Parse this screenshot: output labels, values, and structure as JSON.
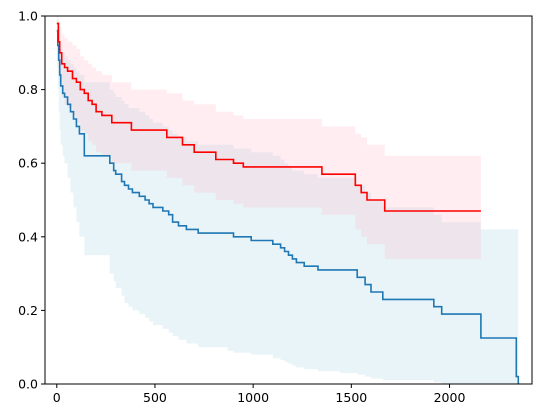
{
  "chart_data": {
    "type": "line",
    "title": "",
    "xlabel": "",
    "ylabel": "",
    "xlim": [
      -60,
      2420
    ],
    "ylim": [
      0,
      1
    ],
    "xticks": [
      0,
      500,
      1000,
      1500,
      2000
    ],
    "yticks": [
      0.0,
      0.2,
      0.4,
      0.6,
      0.8,
      1.0
    ],
    "xtick_labels": [
      "0",
      "500",
      "1000",
      "1500",
      "2000"
    ],
    "ytick_labels": [
      "0.0",
      "0.2",
      "0.4",
      "0.6",
      "0.8",
      "1.0"
    ],
    "grid": false,
    "legend": "none",
    "series": [
      {
        "color": "#1f77b4",
        "band_color": "#add8e6",
        "x": [
          0,
          5,
          10,
          15,
          20,
          30,
          40,
          55,
          70,
          85,
          100,
          115,
          140,
          270,
          290,
          300,
          330,
          345,
          365,
          385,
          420,
          450,
          470,
          490,
          540,
          570,
          590,
          620,
          660,
          720,
          870,
          900,
          990,
          1100,
          1140,
          1160,
          1180,
          1200,
          1220,
          1260,
          1330,
          1440,
          1530,
          1570,
          1600,
          1660,
          1750,
          1920,
          1960,
          2160,
          2340,
          2350
        ],
        "y": [
          0.96,
          0.92,
          0.88,
          0.84,
          0.81,
          0.79,
          0.78,
          0.76,
          0.74,
          0.72,
          0.7,
          0.68,
          0.62,
          0.6,
          0.58,
          0.57,
          0.55,
          0.54,
          0.53,
          0.52,
          0.51,
          0.5,
          0.49,
          0.48,
          0.47,
          0.46,
          0.44,
          0.43,
          0.42,
          0.41,
          0.41,
          0.4,
          0.39,
          0.38,
          0.37,
          0.36,
          0.35,
          0.34,
          0.33,
          0.32,
          0.31,
          0.31,
          0.29,
          0.27,
          0.25,
          0.23,
          0.23,
          0.21,
          0.19,
          0.125,
          0.02,
          0.0
        ],
        "upper": [
          0.99,
          0.97,
          0.95,
          0.93,
          0.91,
          0.9,
          0.89,
          0.88,
          0.87,
          0.86,
          0.85,
          0.84,
          0.82,
          0.8,
          0.79,
          0.78,
          0.77,
          0.76,
          0.75,
          0.75,
          0.74,
          0.73,
          0.72,
          0.71,
          0.7,
          0.69,
          0.68,
          0.67,
          0.66,
          0.65,
          0.65,
          0.64,
          0.63,
          0.62,
          0.61,
          0.6,
          0.59,
          0.58,
          0.58,
          0.57,
          0.56,
          0.56,
          0.54,
          0.52,
          0.5,
          0.48,
          0.48,
          0.46,
          0.44,
          0.42,
          0.42,
          0.42
        ],
        "lower": [
          0.86,
          0.8,
          0.74,
          0.69,
          0.65,
          0.62,
          0.6,
          0.56,
          0.52,
          0.48,
          0.44,
          0.4,
          0.35,
          0.3,
          0.28,
          0.26,
          0.24,
          0.22,
          0.21,
          0.2,
          0.19,
          0.18,
          0.17,
          0.16,
          0.15,
          0.14,
          0.13,
          0.12,
          0.11,
          0.1,
          0.09,
          0.085,
          0.08,
          0.07,
          0.065,
          0.06,
          0.055,
          0.05,
          0.045,
          0.04,
          0.035,
          0.03,
          0.025,
          0.02,
          0.015,
          0.01,
          0.01,
          0.005,
          0.0,
          0.0,
          0.0,
          0.0
        ]
      },
      {
        "color": "#ff0000",
        "band_color": "#ffc0cb",
        "x": [
          0,
          8,
          15,
          25,
          40,
          55,
          80,
          100,
          120,
          140,
          160,
          180,
          200,
          230,
          280,
          380,
          520,
          560,
          640,
          700,
          810,
          900,
          950,
          1350,
          1520,
          1550,
          1580,
          1670,
          2160
        ],
        "y": [
          0.98,
          0.93,
          0.9,
          0.87,
          0.86,
          0.85,
          0.83,
          0.82,
          0.8,
          0.79,
          0.77,
          0.76,
          0.74,
          0.73,
          0.71,
          0.69,
          0.69,
          0.67,
          0.65,
          0.63,
          0.61,
          0.6,
          0.59,
          0.57,
          0.54,
          0.52,
          0.5,
          0.47,
          0.47
        ],
        "upper": [
          1.0,
          0.99,
          0.97,
          0.95,
          0.94,
          0.93,
          0.92,
          0.91,
          0.89,
          0.88,
          0.87,
          0.86,
          0.85,
          0.84,
          0.82,
          0.8,
          0.8,
          0.79,
          0.77,
          0.76,
          0.74,
          0.73,
          0.72,
          0.7,
          0.68,
          0.67,
          0.65,
          0.62,
          0.59
        ],
        "lower": [
          0.92,
          0.86,
          0.82,
          0.78,
          0.76,
          0.75,
          0.73,
          0.71,
          0.69,
          0.68,
          0.66,
          0.65,
          0.63,
          0.62,
          0.6,
          0.58,
          0.58,
          0.56,
          0.54,
          0.52,
          0.5,
          0.49,
          0.48,
          0.46,
          0.42,
          0.4,
          0.38,
          0.34,
          0.34
        ]
      }
    ]
  }
}
